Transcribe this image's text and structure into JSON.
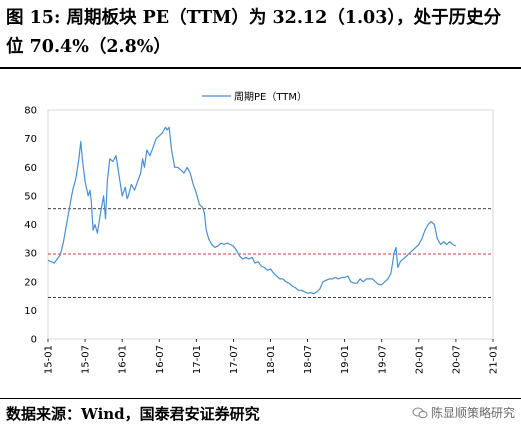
{
  "figure": {
    "title": "图 15: 周期板块 PE（TTM）为 32.12（1.03），处于历史分位 70.4%（2.8%）",
    "source": "数据来源：Wind，国泰君安证券研究",
    "watermark": "陈显顺策略研究"
  },
  "chart_data": {
    "type": "line",
    "title": "",
    "xlabel": "",
    "ylabel": "",
    "ylim": [
      0,
      80
    ],
    "yticks": [
      0,
      10,
      20,
      30,
      40,
      50,
      60,
      70,
      80
    ],
    "xticks": [
      "15-01",
      "15-07",
      "16-01",
      "16-07",
      "17-01",
      "17-07",
      "18-01",
      "18-07",
      "19-01",
      "19-07",
      "20-01",
      "20-07",
      "21-01"
    ],
    "xlim_months": [
      0,
      72
    ],
    "grid": false,
    "legend_position": "top-center",
    "series": [
      {
        "name": "周期PE（TTM）",
        "color": "#4a8fd1",
        "points": [
          [
            0,
            27.5
          ],
          [
            0.5,
            27
          ],
          [
            1,
            26.5
          ],
          [
            1.5,
            28
          ],
          [
            2,
            29.5
          ],
          [
            2.5,
            34
          ],
          [
            3,
            40
          ],
          [
            3.5,
            46
          ],
          [
            4,
            52
          ],
          [
            4.5,
            56
          ],
          [
            5,
            63
          ],
          [
            5.3,
            69
          ],
          [
            5.6,
            62
          ],
          [
            6,
            55
          ],
          [
            6.5,
            50
          ],
          [
            6.8,
            52
          ],
          [
            7,
            48
          ],
          [
            7.3,
            38
          ],
          [
            7.6,
            40
          ],
          [
            8,
            37
          ],
          [
            8.5,
            44
          ],
          [
            9,
            50
          ],
          [
            9.3,
            42
          ],
          [
            9.6,
            55
          ],
          [
            10,
            63
          ],
          [
            10.5,
            62
          ],
          [
            11,
            64
          ],
          [
            11.5,
            57
          ],
          [
            12,
            50
          ],
          [
            12.5,
            53
          ],
          [
            12.8,
            49
          ],
          [
            13,
            50
          ],
          [
            13.5,
            54
          ],
          [
            14,
            52
          ],
          [
            14.5,
            55
          ],
          [
            15,
            58
          ],
          [
            15.3,
            63
          ],
          [
            15.6,
            60
          ],
          [
            16,
            66
          ],
          [
            16.5,
            64
          ],
          [
            17,
            67
          ],
          [
            17.5,
            70
          ],
          [
            18,
            71
          ],
          [
            18.5,
            72
          ],
          [
            19,
            74
          ],
          [
            19.3,
            73
          ],
          [
            19.6,
            74
          ],
          [
            20,
            66
          ],
          [
            20.5,
            60
          ],
          [
            21,
            60
          ],
          [
            21.5,
            59
          ],
          [
            22,
            58
          ],
          [
            22.5,
            60
          ],
          [
            23,
            58
          ],
          [
            23.5,
            54
          ],
          [
            24,
            51
          ],
          [
            24.5,
            47
          ],
          [
            25,
            46
          ],
          [
            25.3,
            44
          ],
          [
            25.6,
            38
          ],
          [
            26,
            35
          ],
          [
            26.5,
            33
          ],
          [
            27,
            32
          ],
          [
            27.5,
            32.5
          ],
          [
            28,
            33.5
          ],
          [
            28.5,
            33
          ],
          [
            29,
            33.5
          ],
          [
            29.5,
            33
          ],
          [
            30,
            32.5
          ],
          [
            30.5,
            31
          ],
          [
            31,
            29
          ],
          [
            31.5,
            28
          ],
          [
            32,
            28.5
          ],
          [
            32.5,
            28
          ],
          [
            33,
            28.5
          ],
          [
            33.5,
            26.5
          ],
          [
            34,
            27
          ],
          [
            34.5,
            25.5
          ],
          [
            35,
            25
          ],
          [
            35.5,
            24
          ],
          [
            36,
            24.5
          ],
          [
            36.5,
            23
          ],
          [
            37,
            22
          ],
          [
            37.5,
            21
          ],
          [
            38,
            21
          ],
          [
            38.5,
            20
          ],
          [
            39,
            19.5
          ],
          [
            39.5,
            18.5
          ],
          [
            40,
            18
          ],
          [
            40.5,
            17
          ],
          [
            41,
            17
          ],
          [
            41.5,
            16.5
          ],
          [
            42,
            16
          ],
          [
            42.5,
            16.2
          ],
          [
            43,
            15.8
          ],
          [
            43.5,
            16.5
          ],
          [
            44,
            17.5
          ],
          [
            44.5,
            20
          ],
          [
            45,
            20.5
          ],
          [
            45.5,
            21
          ],
          [
            46,
            21
          ],
          [
            46.5,
            21.5
          ],
          [
            47,
            21
          ],
          [
            47.5,
            21.5
          ],
          [
            48,
            21.5
          ],
          [
            48.5,
            22
          ],
          [
            49,
            20
          ],
          [
            49.5,
            19.5
          ],
          [
            50,
            19.5
          ],
          [
            50.5,
            21
          ],
          [
            51,
            20
          ],
          [
            51.5,
            21
          ],
          [
            52,
            21
          ],
          [
            52.5,
            21
          ],
          [
            53,
            20
          ],
          [
            53.5,
            19
          ],
          [
            54,
            19
          ],
          [
            54.5,
            20
          ],
          [
            55,
            21
          ],
          [
            55.5,
            23
          ],
          [
            56,
            30
          ],
          [
            56.3,
            32
          ],
          [
            56.6,
            25
          ],
          [
            57,
            27
          ],
          [
            57.5,
            28
          ],
          [
            58,
            29
          ],
          [
            58.5,
            30
          ],
          [
            59,
            31
          ],
          [
            59.5,
            32
          ],
          [
            60,
            33
          ],
          [
            60.5,
            35
          ],
          [
            61,
            38
          ],
          [
            61.5,
            40
          ],
          [
            62,
            41
          ],
          [
            62.5,
            40
          ],
          [
            63,
            35
          ],
          [
            63.5,
            33
          ],
          [
            64,
            34
          ],
          [
            64.5,
            33
          ],
          [
            65,
            34
          ],
          [
            65.5,
            33
          ],
          [
            66,
            32.5
          ]
        ]
      }
    ],
    "reference_lines": [
      {
        "value": 45.5,
        "color": "#000000",
        "style": "dashed"
      },
      {
        "value": 29.7,
        "color": "#c00000",
        "style": "dashed"
      },
      {
        "value": 14.5,
        "color": "#000000",
        "style": "dashed"
      }
    ]
  }
}
